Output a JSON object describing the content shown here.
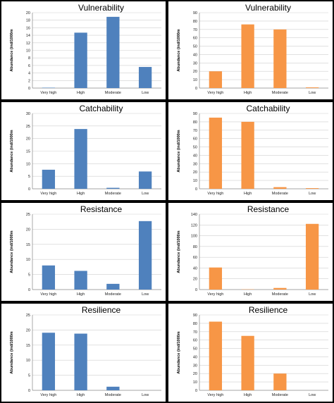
{
  "colors": {
    "blue": "#4f81bd",
    "orange": "#f79646"
  },
  "chart_data": [
    {
      "type": "bar",
      "title": "Vulnerability",
      "ylabel": "Abundance (ind/1000m",
      "categories": [
        "Very high",
        "High",
        "Moderate",
        "Low"
      ],
      "values": [
        0.1,
        14.7,
        18.9,
        5.6
      ],
      "ylim": [
        0,
        20
      ],
      "yticks": [
        0,
        2,
        4,
        6,
        8,
        10,
        12,
        14,
        16,
        18,
        20
      ],
      "color": "#4f81bd",
      "grid": true
    },
    {
      "type": "bar",
      "title": "Vulnerability",
      "ylabel": "Abundance (ind/1000m",
      "categories": [
        "Very high",
        "High",
        "Moderate",
        "Low"
      ],
      "values": [
        20,
        76,
        70,
        0.8
      ],
      "ylim": [
        0,
        90
      ],
      "yticks": [
        0,
        10,
        20,
        30,
        40,
        50,
        60,
        70,
        80,
        90
      ],
      "color": "#f79646",
      "grid": true
    },
    {
      "type": "bar",
      "title": "Catchability",
      "ylabel": "Abundance (ind/1000m",
      "categories": [
        "Very high",
        "High",
        "Moderate",
        "Low"
      ],
      "values": [
        7.6,
        23.8,
        0.4,
        6.9
      ],
      "ylim": [
        0,
        30
      ],
      "yticks": [
        0,
        5,
        10,
        15,
        20,
        25,
        30
      ],
      "color": "#4f81bd",
      "grid": true
    },
    {
      "type": "bar",
      "title": "Catchability",
      "ylabel": "Abundance (ind/1000m",
      "categories": [
        "Very high",
        "High",
        "Moderate",
        "Low"
      ],
      "values": [
        85,
        80,
        2,
        0.8
      ],
      "ylim": [
        0,
        90
      ],
      "yticks": [
        0,
        10,
        20,
        30,
        40,
        50,
        60,
        70,
        80,
        90
      ],
      "color": "#f79646",
      "grid": true
    },
    {
      "type": "bar",
      "title": "Resistance",
      "ylabel": "Abundance (ind/1000m",
      "categories": [
        "Very high",
        "High",
        "Moderate",
        "Low"
      ],
      "values": [
        8.0,
        6.2,
        1.9,
        22.7
      ],
      "ylim": [
        0,
        25
      ],
      "yticks": [
        0,
        5,
        10,
        15,
        20,
        25
      ],
      "color": "#4f81bd",
      "grid": true
    },
    {
      "type": "bar",
      "title": "Resistance",
      "ylabel": "Abundance (ind/1000m",
      "categories": [
        "Very high",
        "High",
        "Moderate",
        "Low"
      ],
      "values": [
        41,
        0.5,
        3,
        122
      ],
      "ylim": [
        0,
        140
      ],
      "yticks": [
        0,
        20,
        40,
        60,
        80,
        100,
        120,
        140
      ],
      "color": "#f79646",
      "grid": true
    },
    {
      "type": "bar",
      "title": "Resilience",
      "ylabel": "Abundance (ind/1000m",
      "categories": [
        "Very high",
        "High",
        "Moderate",
        "Low"
      ],
      "values": [
        19.1,
        18.8,
        1.2,
        0
      ],
      "ylim": [
        0,
        25
      ],
      "yticks": [
        0,
        5,
        10,
        15,
        20,
        25
      ],
      "color": "#4f81bd",
      "grid": true
    },
    {
      "type": "bar",
      "title": "Resilience",
      "ylabel": "Abundance (ind/1000m",
      "categories": [
        "Very high",
        "High",
        "Moderate",
        "Low"
      ],
      "values": [
        82,
        65,
        20,
        0
      ],
      "ylim": [
        0,
        90
      ],
      "yticks": [
        0,
        10,
        20,
        30,
        40,
        50,
        60,
        70,
        80,
        90
      ],
      "color": "#f79646",
      "grid": true
    }
  ]
}
